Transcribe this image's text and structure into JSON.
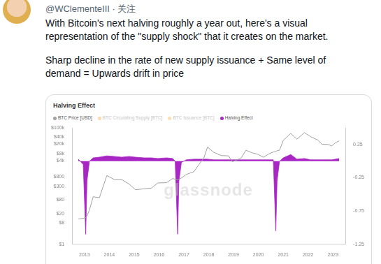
{
  "tweet": {
    "handle": "@WClementeIII",
    "separator": "·",
    "follow": "关注",
    "paragraphs": [
      [
        "With Bitcoin's next halving roughly a year out, here's a visual",
        "representation of the \"supply shock\" that it creates on the market."
      ],
      [
        "Sharp decline in the rate of new supply issuance + Same level of",
        "demand = Upwards drift in price"
      ]
    ]
  },
  "chart_data": {
    "type": "line",
    "title": "Halving Effect",
    "watermark": "glassnode",
    "x": [
      2012.75,
      2012.95,
      2013.05,
      2013.1,
      2013.2,
      2013.35,
      2013.6,
      2013.9,
      2014.2,
      2014.5,
      2014.8,
      2015.05,
      2015.4,
      2015.7,
      2015.95,
      2016.3,
      2016.55,
      2016.65,
      2016.75,
      2016.8,
      2016.9,
      2017.1,
      2017.4,
      2017.6,
      2017.8,
      2017.95,
      2018.2,
      2018.5,
      2018.8,
      2018.95,
      2019.3,
      2019.5,
      2019.75,
      2020.0,
      2020.2,
      2020.45,
      2020.6,
      2020.7,
      2020.75,
      2020.85,
      2021.0,
      2021.3,
      2021.55,
      2021.85,
      2022.1,
      2022.4,
      2022.55,
      2022.8,
      2022.95,
      2023.1,
      2023.25
    ],
    "xlim": [
      2012.5,
      2023.5
    ],
    "xticks": [
      2013,
      2014,
      2015,
      2016,
      2017,
      2018,
      2019,
      2020,
      2021,
      2022,
      2023
    ],
    "log": "y",
    "ylim": [
      1,
      100000
    ],
    "yticks": [
      {
        "value": 1,
        "label": "$1"
      },
      {
        "value": 8,
        "label": "$8"
      },
      {
        "value": 20,
        "label": "$20"
      },
      {
        "value": 80,
        "label": "$80"
      },
      {
        "value": 300,
        "label": "$300"
      },
      {
        "value": 800,
        "label": "$800"
      },
      {
        "value": 4000,
        "label": "$4k"
      },
      {
        "value": 8000,
        "label": "$8k"
      },
      {
        "value": 20000,
        "label": "$20k"
      },
      {
        "value": 40000,
        "label": "$40k"
      },
      {
        "value": 100000,
        "label": "$100k"
      }
    ],
    "y2lim": [
      -1.25,
      0.5
    ],
    "y2ticks": [
      -1.25,
      -0.75,
      -0.25,
      0.25
    ],
    "grid": false,
    "legend": "top-left",
    "series": [
      {
        "name": "BTC Price [USD]",
        "color": "#a0a0a0",
        "type": "line",
        "values": [
          12,
          13,
          14,
          16,
          30,
          110,
          100,
          900,
          600,
          600,
          380,
          220,
          240,
          260,
          430,
          440,
          670,
          620,
          600,
          620,
          700,
          1000,
          1300,
          2600,
          5000,
          15000,
          9000,
          6500,
          6300,
          3500,
          5000,
          11000,
          8500,
          7200,
          5500,
          8000,
          9200,
          9500,
          10500,
          11000,
          29000,
          58000,
          33000,
          63000,
          42000,
          30000,
          20000,
          19500,
          16800,
          23000,
          28000
        ]
      },
      {
        "name": "BTC Circulating Supply [BTC]",
        "color": "#f7931a",
        "type": "line",
        "values": [
          null,
          null,
          null,
          null,
          null,
          null,
          null,
          null,
          null,
          null,
          null,
          null,
          null,
          null,
          null,
          null,
          null,
          null,
          null,
          null,
          null,
          null,
          null,
          null,
          null,
          null,
          null,
          null,
          null,
          null,
          null,
          null,
          null,
          null,
          null,
          null,
          null,
          null,
          null,
          null,
          null,
          null,
          null,
          null,
          null,
          null,
          null,
          null,
          null,
          null,
          null
        ]
      },
      {
        "name": "BTC Issuance [BTC]",
        "color": "#f5a623",
        "type": "line",
        "values": [
          null,
          null,
          null,
          null,
          null,
          null,
          null,
          null,
          null,
          null,
          null,
          null,
          null,
          null,
          null,
          null,
          null,
          null,
          null,
          null,
          null,
          null,
          null,
          null,
          null,
          null,
          null,
          null,
          null,
          null,
          null,
          null,
          null,
          null,
          null,
          null,
          null,
          null,
          null,
          null,
          null,
          null,
          null,
          null,
          null,
          null,
          null,
          null,
          null,
          null,
          null
        ]
      },
      {
        "name": "Halving Effect",
        "color": "#a826c4",
        "type": "area",
        "axis": "y2",
        "values": [
          0.03,
          -0.05,
          -1.1,
          -0.3,
          0.0,
          0.05,
          0.06,
          0.08,
          0.07,
          0.06,
          0.07,
          0.06,
          0.05,
          0.05,
          0.04,
          0.05,
          0.04,
          0.0,
          -1.1,
          -0.3,
          -0.02,
          0.02,
          0.03,
          0.03,
          0.03,
          0.03,
          0.02,
          0.02,
          0.02,
          0.02,
          0.02,
          0.02,
          0.02,
          0.02,
          0.02,
          0.02,
          0.02,
          -1.05,
          -0.3,
          0.0,
          0.05,
          0.1,
          0.03,
          0.04,
          0.02,
          0.02,
          0.02,
          0.02,
          0.02,
          0.03,
          0.04
        ]
      }
    ]
  }
}
